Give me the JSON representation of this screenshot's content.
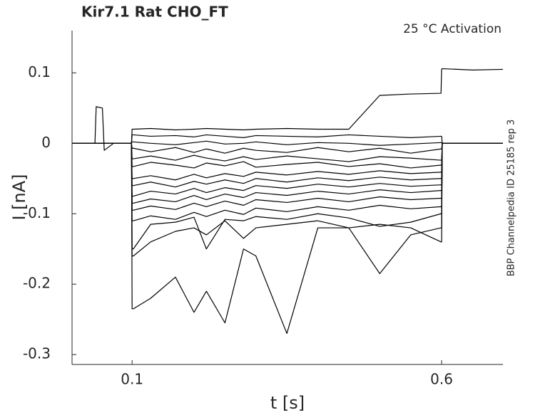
{
  "chart_data": {
    "type": "line",
    "title": "Kir7.1  Rat  CHO_FT",
    "annotation": "25 °C  Activation",
    "side_note": "BBP Channelpedia ID 25185 rep 3",
    "xlabel": "t [s]",
    "ylabel": "I [nA]",
    "xlim": [
      0.003,
      0.699
    ],
    "ylim": [
      -0.314,
      0.16
    ],
    "xticks": [
      0.1,
      0.6
    ],
    "yticks": [
      -0.3,
      -0.2,
      -0.1,
      0,
      0.1
    ],
    "grid": false,
    "x": [
      0.003,
      0.04,
      0.042,
      0.052,
      0.055,
      0.07,
      0.099,
      0.1,
      0.102,
      0.13,
      0.17,
      0.2,
      0.22,
      0.25,
      0.28,
      0.3,
      0.35,
      0.4,
      0.45,
      0.5,
      0.55,
      0.599,
      0.6,
      0.601,
      0.65,
      0.699
    ],
    "series": [
      {
        "color": "#000000",
        "values": [
          0,
          0,
          0,
          0,
          0,
          0,
          0,
          0.02,
          0.02,
          0.021,
          0.019,
          0.02,
          0.021,
          0.02,
          0.019,
          0.02,
          0.021,
          0.02,
          0.02,
          0.068,
          0.07,
          0.071,
          0.105,
          0.106,
          0.104,
          0.105
        ]
      },
      {
        "color": "#000000",
        "values": [
          0,
          0,
          0.052,
          0.05,
          -0.01,
          0,
          0,
          0.012,
          0.012,
          0.01,
          0.011,
          0.009,
          0.012,
          0.01,
          0.008,
          0.011,
          0.01,
          0.009,
          0.012,
          0.01,
          0.008,
          0.01,
          0.01,
          0,
          0,
          0
        ]
      },
      {
        "color": "#000000",
        "values": [
          0,
          0,
          0,
          0,
          0,
          0,
          0,
          0.002,
          0.002,
          0,
          -0.002,
          0.001,
          0.003,
          -0.001,
          0,
          0.002,
          -0.002,
          0.001,
          0,
          -0.003,
          -0.001,
          0.001,
          0.001,
          0,
          0,
          0
        ]
      },
      {
        "color": "#000000",
        "values": [
          0,
          0,
          0,
          0,
          0,
          0,
          0,
          -0.007,
          -0.007,
          -0.012,
          -0.006,
          -0.013,
          -0.008,
          -0.014,
          -0.007,
          -0.01,
          -0.013,
          -0.006,
          -0.012,
          -0.007,
          -0.014,
          -0.008,
          -0.008,
          0,
          0,
          0
        ]
      },
      {
        "color": "#000000",
        "values": [
          0,
          0,
          0,
          0,
          0,
          0,
          0,
          -0.022,
          -0.022,
          -0.018,
          -0.024,
          -0.017,
          -0.021,
          -0.025,
          -0.019,
          -0.023,
          -0.018,
          -0.022,
          -0.026,
          -0.019,
          -0.021,
          -0.024,
          -0.024,
          0,
          0,
          0
        ]
      },
      {
        "color": "#000000",
        "values": [
          0,
          0,
          0,
          0,
          0,
          0,
          0,
          -0.033,
          -0.033,
          -0.027,
          -0.031,
          -0.035,
          -0.028,
          -0.032,
          -0.026,
          -0.034,
          -0.03,
          -0.027,
          -0.033,
          -0.029,
          -0.035,
          -0.031,
          -0.031,
          0,
          0,
          0
        ]
      },
      {
        "color": "#000000",
        "values": [
          0,
          0,
          0,
          0,
          0,
          0,
          0,
          -0.05,
          -0.05,
          -0.046,
          -0.052,
          -0.044,
          -0.049,
          -0.043,
          -0.047,
          -0.041,
          -0.045,
          -0.04,
          -0.044,
          -0.039,
          -0.043,
          -0.041,
          -0.041,
          0,
          0,
          0
        ]
      },
      {
        "color": "#000000",
        "values": [
          0,
          0,
          0,
          0,
          0,
          0,
          0,
          -0.06,
          -0.06,
          -0.055,
          -0.062,
          -0.054,
          -0.058,
          -0.052,
          -0.057,
          -0.05,
          -0.055,
          -0.049,
          -0.053,
          -0.048,
          -0.052,
          -0.05,
          -0.05,
          0,
          0,
          0
        ]
      },
      {
        "color": "#000000",
        "values": [
          0,
          0,
          0,
          0,
          0,
          0,
          0,
          -0.075,
          -0.075,
          -0.068,
          -0.072,
          -0.064,
          -0.07,
          -0.063,
          -0.067,
          -0.06,
          -0.064,
          -0.058,
          -0.062,
          -0.057,
          -0.061,
          -0.059,
          -0.059,
          0,
          0,
          0
        ]
      },
      {
        "color": "#000000",
        "values": [
          0,
          0,
          0,
          0,
          0,
          0,
          0,
          -0.085,
          -0.085,
          -0.079,
          -0.083,
          -0.074,
          -0.08,
          -0.072,
          -0.077,
          -0.07,
          -0.074,
          -0.068,
          -0.072,
          -0.066,
          -0.07,
          -0.067,
          -0.067,
          0,
          0,
          0
        ]
      },
      {
        "color": "#000000",
        "values": [
          0,
          0,
          0,
          0,
          0,
          0,
          0,
          -0.095,
          -0.095,
          -0.089,
          -0.094,
          -0.085,
          -0.09,
          -0.082,
          -0.088,
          -0.08,
          -0.084,
          -0.078,
          -0.083,
          -0.076,
          -0.08,
          -0.078,
          -0.078,
          0,
          0,
          0
        ]
      },
      {
        "color": "#000000",
        "values": [
          0,
          0,
          0,
          0,
          0,
          0,
          0,
          -0.11,
          -0.11,
          -0.103,
          -0.108,
          -0.098,
          -0.104,
          -0.095,
          -0.101,
          -0.092,
          -0.097,
          -0.09,
          -0.095,
          -0.088,
          -0.093,
          -0.09,
          -0.09,
          0,
          0,
          0
        ]
      },
      {
        "color": "#000000",
        "values": [
          0,
          0,
          0,
          0,
          0,
          0,
          0,
          -0.15,
          -0.15,
          -0.115,
          -0.112,
          -0.105,
          -0.15,
          -0.108,
          -0.11,
          -0.104,
          -0.108,
          -0.1,
          -0.106,
          -0.118,
          -0.112,
          -0.1,
          -0.1,
          0,
          0,
          0
        ]
      },
      {
        "color": "#000000",
        "values": [
          0,
          0,
          0,
          0,
          0,
          0,
          0,
          -0.16,
          -0.16,
          -0.14,
          -0.125,
          -0.12,
          -0.13,
          -0.11,
          -0.135,
          -0.12,
          -0.115,
          -0.11,
          -0.12,
          -0.115,
          -0.12,
          -0.14,
          -0.14,
          0,
          0,
          0
        ]
      },
      {
        "color": "#000000",
        "values": [
          0,
          0,
          0,
          0,
          0,
          0,
          0,
          -0.235,
          -0.235,
          -0.22,
          -0.19,
          -0.24,
          -0.21,
          -0.255,
          -0.15,
          -0.16,
          -0.27,
          -0.12,
          -0.12,
          -0.185,
          -0.13,
          -0.12,
          -0.12,
          0,
          0,
          0
        ]
      }
    ]
  }
}
